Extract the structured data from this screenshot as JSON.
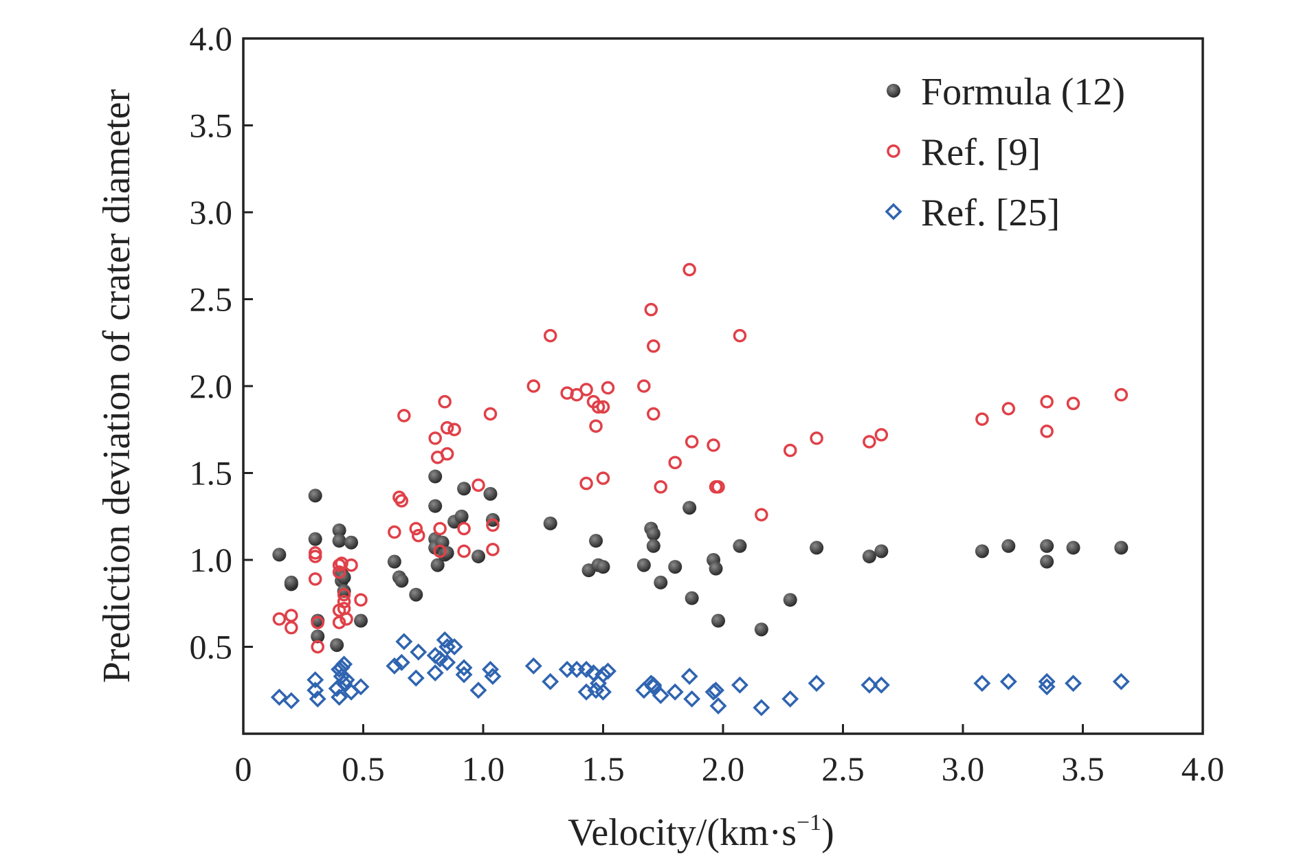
{
  "chart_data": {
    "type": "scatter",
    "xlabel": "Velocity/(km·s",
    "xlabel_sup": "−1",
    "xlabel_end": ")",
    "ylabel": "Prediction deviation of crater diameter",
    "xlim": [
      0,
      4.0
    ],
    "ylim": [
      0,
      4.0
    ],
    "x_ticks": [
      0,
      0.5,
      1.0,
      1.5,
      2.0,
      2.5,
      3.0,
      3.5,
      4.0
    ],
    "x_tick_labels": [
      "0",
      "0.5",
      "1.0",
      "1.5",
      "2.0",
      "2.5",
      "3.0",
      "3.5",
      "4.0"
    ],
    "y_ticks": [
      0.5,
      1.0,
      1.5,
      2.0,
      2.5,
      3.0,
      3.5,
      4.0
    ],
    "y_tick_labels": [
      "0.5",
      "1.0",
      "1.5",
      "2.0",
      "2.5",
      "3.0",
      "3.5",
      "4.0"
    ],
    "grid": false,
    "legend_position": "top-right",
    "series": [
      {
        "name": "Formula (12)",
        "marker": "filled-circle",
        "color": "#3a3a3a",
        "points": [
          [
            0.15,
            1.03
          ],
          [
            0.2,
            0.86
          ],
          [
            0.2,
            0.87
          ],
          [
            0.3,
            1.37
          ],
          [
            0.3,
            1.12
          ],
          [
            0.31,
            0.56
          ],
          [
            0.31,
            0.65
          ],
          [
            0.39,
            0.51
          ],
          [
            0.4,
            1.17
          ],
          [
            0.4,
            1.11
          ],
          [
            0.41,
            0.88
          ],
          [
            0.41,
            0.92
          ],
          [
            0.42,
            0.9
          ],
          [
            0.42,
            0.82
          ],
          [
            0.45,
            1.1
          ],
          [
            0.49,
            0.65
          ],
          [
            0.63,
            0.99
          ],
          [
            0.65,
            0.9
          ],
          [
            0.66,
            0.88
          ],
          [
            0.72,
            0.8
          ],
          [
            0.8,
            1.48
          ],
          [
            0.8,
            1.31
          ],
          [
            0.8,
            1.12
          ],
          [
            0.8,
            1.07
          ],
          [
            0.81,
            0.97
          ],
          [
            0.83,
            1.1
          ],
          [
            0.84,
            1.03
          ],
          [
            0.85,
            1.04
          ],
          [
            0.88,
            1.22
          ],
          [
            0.91,
            1.25
          ],
          [
            0.92,
            1.41
          ],
          [
            0.98,
            1.02
          ],
          [
            1.03,
            1.38
          ],
          [
            1.04,
            1.23
          ],
          [
            1.28,
            1.21
          ],
          [
            1.44,
            0.94
          ],
          [
            1.47,
            1.11
          ],
          [
            1.48,
            0.97
          ],
          [
            1.5,
            0.96
          ],
          [
            1.67,
            0.97
          ],
          [
            1.7,
            1.18
          ],
          [
            1.71,
            1.15
          ],
          [
            1.71,
            1.08
          ],
          [
            1.74,
            0.87
          ],
          [
            1.8,
            0.96
          ],
          [
            1.86,
            1.3
          ],
          [
            1.87,
            0.78
          ],
          [
            1.96,
            1.0
          ],
          [
            1.97,
            0.95
          ],
          [
            1.98,
            0.65
          ],
          [
            2.07,
            1.08
          ],
          [
            2.16,
            0.6
          ],
          [
            2.28,
            0.77
          ],
          [
            2.39,
            1.07
          ],
          [
            2.61,
            1.02
          ],
          [
            2.66,
            1.05
          ],
          [
            3.08,
            1.05
          ],
          [
            3.19,
            1.08
          ],
          [
            3.35,
            1.08
          ],
          [
            3.35,
            0.99
          ],
          [
            3.46,
            1.07
          ],
          [
            3.66,
            1.07
          ]
        ]
      },
      {
        "name": "Ref. [9]",
        "marker": "open-circle",
        "color": "#e04048",
        "points": [
          [
            0.15,
            0.66
          ],
          [
            0.2,
            0.68
          ],
          [
            0.2,
            0.61
          ],
          [
            0.3,
            1.04
          ],
          [
            0.3,
            1.02
          ],
          [
            0.3,
            0.89
          ],
          [
            0.31,
            0.64
          ],
          [
            0.31,
            0.5
          ],
          [
            0.4,
            0.97
          ],
          [
            0.4,
            0.93
          ],
          [
            0.4,
            0.71
          ],
          [
            0.4,
            0.64
          ],
          [
            0.41,
            0.98
          ],
          [
            0.42,
            0.8
          ],
          [
            0.42,
            0.76
          ],
          [
            0.42,
            0.72
          ],
          [
            0.43,
            0.66
          ],
          [
            0.45,
            0.97
          ],
          [
            0.49,
            0.77
          ],
          [
            0.63,
            1.16
          ],
          [
            0.65,
            1.36
          ],
          [
            0.66,
            1.34
          ],
          [
            0.67,
            1.83
          ],
          [
            0.72,
            1.18
          ],
          [
            0.73,
            1.14
          ],
          [
            0.8,
            1.7
          ],
          [
            0.81,
            1.59
          ],
          [
            0.82,
            1.18
          ],
          [
            0.82,
            1.05
          ],
          [
            0.84,
            1.91
          ],
          [
            0.85,
            1.61
          ],
          [
            0.85,
            1.76
          ],
          [
            0.88,
            1.75
          ],
          [
            0.92,
            1.18
          ],
          [
            0.92,
            1.05
          ],
          [
            0.98,
            1.43
          ],
          [
            1.03,
            1.84
          ],
          [
            1.04,
            1.2
          ],
          [
            1.04,
            1.06
          ],
          [
            1.21,
            2.0
          ],
          [
            1.28,
            2.29
          ],
          [
            1.35,
            1.96
          ],
          [
            1.39,
            1.95
          ],
          [
            1.43,
            1.98
          ],
          [
            1.43,
            1.44
          ],
          [
            1.46,
            1.91
          ],
          [
            1.47,
            1.77
          ],
          [
            1.48,
            1.88
          ],
          [
            1.5,
            1.88
          ],
          [
            1.5,
            1.47
          ],
          [
            1.52,
            1.99
          ],
          [
            1.67,
            2.0
          ],
          [
            1.7,
            2.44
          ],
          [
            1.71,
            2.23
          ],
          [
            1.71,
            1.84
          ],
          [
            1.74,
            1.42
          ],
          [
            1.8,
            1.56
          ],
          [
            1.86,
            2.67
          ],
          [
            1.87,
            1.68
          ],
          [
            1.96,
            1.66
          ],
          [
            1.97,
            1.42
          ],
          [
            1.98,
            1.42
          ],
          [
            2.07,
            2.29
          ],
          [
            2.16,
            1.26
          ],
          [
            2.28,
            1.63
          ],
          [
            2.39,
            1.7
          ],
          [
            2.61,
            1.68
          ],
          [
            2.66,
            1.72
          ],
          [
            3.08,
            1.81
          ],
          [
            3.19,
            1.87
          ],
          [
            3.35,
            1.91
          ],
          [
            3.35,
            1.74
          ],
          [
            3.46,
            1.9
          ],
          [
            3.66,
            1.95
          ]
        ]
      },
      {
        "name": "Ref. [25]",
        "marker": "open-diamond",
        "color": "#2f64b0",
        "points": [
          [
            0.15,
            0.21
          ],
          [
            0.2,
            0.19
          ],
          [
            0.3,
            0.31
          ],
          [
            0.3,
            0.25
          ],
          [
            0.31,
            0.2
          ],
          [
            0.39,
            0.26
          ],
          [
            0.4,
            0.21
          ],
          [
            0.4,
            0.37
          ],
          [
            0.41,
            0.38
          ],
          [
            0.41,
            0.33
          ],
          [
            0.42,
            0.4
          ],
          [
            0.42,
            0.29
          ],
          [
            0.43,
            0.31
          ],
          [
            0.45,
            0.24
          ],
          [
            0.49,
            0.27
          ],
          [
            0.63,
            0.39
          ],
          [
            0.66,
            0.41
          ],
          [
            0.67,
            0.53
          ],
          [
            0.72,
            0.32
          ],
          [
            0.73,
            0.47
          ],
          [
            0.8,
            0.35
          ],
          [
            0.8,
            0.45
          ],
          [
            0.82,
            0.43
          ],
          [
            0.84,
            0.54
          ],
          [
            0.85,
            0.5
          ],
          [
            0.85,
            0.41
          ],
          [
            0.88,
            0.5
          ],
          [
            0.92,
            0.34
          ],
          [
            0.92,
            0.38
          ],
          [
            0.98,
            0.25
          ],
          [
            1.03,
            0.37
          ],
          [
            1.04,
            0.33
          ],
          [
            1.21,
            0.39
          ],
          [
            1.28,
            0.3
          ],
          [
            1.35,
            0.37
          ],
          [
            1.39,
            0.37
          ],
          [
            1.43,
            0.37
          ],
          [
            1.43,
            0.24
          ],
          [
            1.46,
            0.35
          ],
          [
            1.47,
            0.25
          ],
          [
            1.48,
            0.29
          ],
          [
            1.5,
            0.34
          ],
          [
            1.5,
            0.24
          ],
          [
            1.52,
            0.36
          ],
          [
            1.67,
            0.25
          ],
          [
            1.7,
            0.29
          ],
          [
            1.71,
            0.28
          ],
          [
            1.71,
            0.27
          ],
          [
            1.74,
            0.22
          ],
          [
            1.8,
            0.24
          ],
          [
            1.86,
            0.33
          ],
          [
            1.87,
            0.2
          ],
          [
            1.96,
            0.24
          ],
          [
            1.97,
            0.25
          ],
          [
            1.98,
            0.16
          ],
          [
            2.07,
            0.28
          ],
          [
            2.16,
            0.15
          ],
          [
            2.28,
            0.2
          ],
          [
            2.39,
            0.29
          ],
          [
            2.61,
            0.28
          ],
          [
            2.66,
            0.28
          ],
          [
            3.08,
            0.29
          ],
          [
            3.19,
            0.3
          ],
          [
            3.35,
            0.3
          ],
          [
            3.35,
            0.27
          ],
          [
            3.46,
            0.29
          ],
          [
            3.66,
            0.3
          ]
        ]
      }
    ]
  }
}
